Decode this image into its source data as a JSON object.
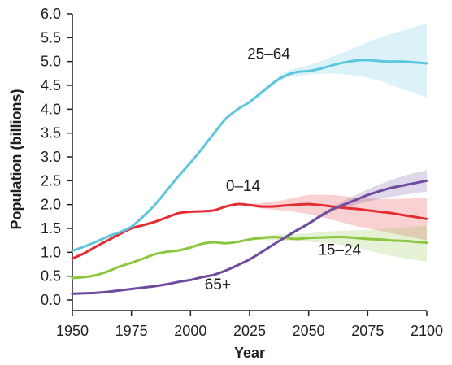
{
  "chart_data": {
    "type": "line",
    "title": "",
    "xlabel": "Year",
    "ylabel": "Population (billions)",
    "xlim": [
      1950,
      2100
    ],
    "ylim": [
      0,
      6
    ],
    "x_ticks": [
      1950,
      1975,
      2000,
      2025,
      2050,
      2075,
      2100
    ],
    "y_ticks": [
      "0.0",
      "0.5",
      "1.0",
      "1.5",
      "2.0",
      "2.5",
      "3.0",
      "3.5",
      "4.0",
      "4.5",
      "5.0",
      "5.5",
      "6.0"
    ],
    "grid": false,
    "legend": "none (series labeled directly on the plot)",
    "uncertainty_bands": "shaded intervals for projections after ~2023",
    "series": [
      {
        "name": "0–14",
        "color": "#e42d33",
        "x": [
          1950,
          1955,
          1960,
          1965,
          1970,
          1975,
          1980,
          1985,
          1990,
          1995,
          2000,
          2005,
          2010,
          2015,
          2020,
          2025,
          2030,
          2035,
          2040,
          2045,
          2050,
          2055,
          2060,
          2065,
          2070,
          2075,
          2080,
          2085,
          2090,
          2095,
          2100
        ],
        "values": [
          0.87,
          0.98,
          1.12,
          1.25,
          1.38,
          1.5,
          1.57,
          1.64,
          1.73,
          1.82,
          1.85,
          1.86,
          1.88,
          1.96,
          2.01,
          1.99,
          1.96,
          1.96,
          1.98,
          2.0,
          2.01,
          1.99,
          1.96,
          1.93,
          1.91,
          1.88,
          1.85,
          1.82,
          1.78,
          1.74,
          1.7
        ],
        "band_x": [
          2023,
          2030,
          2040,
          2050,
          2060,
          2070,
          2080,
          2090,
          2100
        ],
        "band_low": [
          1.98,
          1.92,
          1.87,
          1.8,
          1.68,
          1.55,
          1.45,
          1.35,
          1.25
        ],
        "band_high": [
          2.0,
          2.03,
          2.1,
          2.2,
          2.2,
          2.15,
          2.12,
          2.12,
          2.15
        ]
      },
      {
        "name": "15–24",
        "color": "#8cc63f",
        "x": [
          1950,
          1955,
          1960,
          1965,
          1970,
          1975,
          1980,
          1985,
          1990,
          1995,
          2000,
          2005,
          2010,
          2015,
          2020,
          2025,
          2030,
          2035,
          2040,
          2045,
          2050,
          2055,
          2060,
          2065,
          2070,
          2075,
          2080,
          2085,
          2090,
          2095,
          2100
        ],
        "values": [
          0.46,
          0.48,
          0.52,
          0.6,
          0.7,
          0.78,
          0.87,
          0.96,
          1.01,
          1.04,
          1.1,
          1.18,
          1.21,
          1.19,
          1.22,
          1.27,
          1.3,
          1.32,
          1.3,
          1.28,
          1.3,
          1.31,
          1.32,
          1.32,
          1.3,
          1.28,
          1.27,
          1.25,
          1.24,
          1.22,
          1.2
        ],
        "band_x": [
          2023,
          2030,
          2040,
          2050,
          2060,
          2070,
          2080,
          2090,
          2100
        ],
        "band_low": [
          1.25,
          1.26,
          1.24,
          1.22,
          1.18,
          1.1,
          0.98,
          0.88,
          0.8
        ],
        "band_high": [
          1.27,
          1.34,
          1.38,
          1.4,
          1.44,
          1.46,
          1.48,
          1.52,
          1.56
        ]
      },
      {
        "name": "25–64",
        "color": "#5dc6de",
        "x": [
          1950,
          1955,
          1960,
          1965,
          1970,
          1975,
          1980,
          1985,
          1990,
          1995,
          2000,
          2005,
          2010,
          2015,
          2020,
          2025,
          2030,
          2035,
          2040,
          2045,
          2050,
          2055,
          2060,
          2065,
          2070,
          2075,
          2080,
          2085,
          2090,
          2095,
          2100
        ],
        "values": [
          1.03,
          1.12,
          1.22,
          1.33,
          1.42,
          1.54,
          1.75,
          2.0,
          2.3,
          2.6,
          2.88,
          3.18,
          3.5,
          3.8,
          4.0,
          4.15,
          4.35,
          4.55,
          4.7,
          4.78,
          4.8,
          4.85,
          4.92,
          4.98,
          5.02,
          5.03,
          5.01,
          5.0,
          5.0,
          4.98,
          4.96
        ],
        "band_x": [
          2023,
          2030,
          2040,
          2050,
          2060,
          2070,
          2080,
          2090,
          2100
        ],
        "band_low": [
          4.08,
          4.3,
          4.65,
          4.72,
          4.75,
          4.7,
          4.6,
          4.42,
          4.25
        ],
        "band_high": [
          4.1,
          4.38,
          4.78,
          4.92,
          5.1,
          5.3,
          5.5,
          5.65,
          5.8
        ]
      },
      {
        "name": "65+",
        "color": "#6e4b9e",
        "x": [
          1950,
          1955,
          1960,
          1965,
          1970,
          1975,
          1980,
          1985,
          1990,
          1995,
          2000,
          2005,
          2010,
          2015,
          2020,
          2025,
          2030,
          2035,
          2040,
          2045,
          2050,
          2055,
          2060,
          2065,
          2070,
          2075,
          2080,
          2085,
          2090,
          2095,
          2100
        ],
        "values": [
          0.13,
          0.14,
          0.15,
          0.17,
          0.2,
          0.23,
          0.26,
          0.29,
          0.33,
          0.38,
          0.42,
          0.48,
          0.53,
          0.62,
          0.73,
          0.85,
          1.0,
          1.16,
          1.31,
          1.46,
          1.6,
          1.76,
          1.9,
          2.0,
          2.1,
          2.2,
          2.28,
          2.35,
          2.4,
          2.45,
          2.5
        ],
        "band_x": [
          2023,
          2030,
          2040,
          2050,
          2060,
          2070,
          2080,
          2090,
          2100
        ],
        "band_low": [
          0.8,
          0.98,
          1.28,
          1.57,
          1.85,
          2.0,
          2.12,
          2.2,
          2.27
        ],
        "band_high": [
          0.82,
          1.02,
          1.34,
          1.64,
          1.95,
          2.2,
          2.42,
          2.6,
          2.72
        ]
      }
    ],
    "annotations": [
      {
        "text": "25–64",
        "x": 2024,
        "y": 5.05,
        "anchor": "start"
      },
      {
        "text": "0–14",
        "x": 2015,
        "y": 2.28,
        "anchor": "start"
      },
      {
        "text": "15–24",
        "x": 2054,
        "y": 0.95,
        "anchor": "start"
      },
      {
        "text": "65+",
        "x": 2006,
        "y": 0.22,
        "anchor": "start"
      }
    ]
  }
}
